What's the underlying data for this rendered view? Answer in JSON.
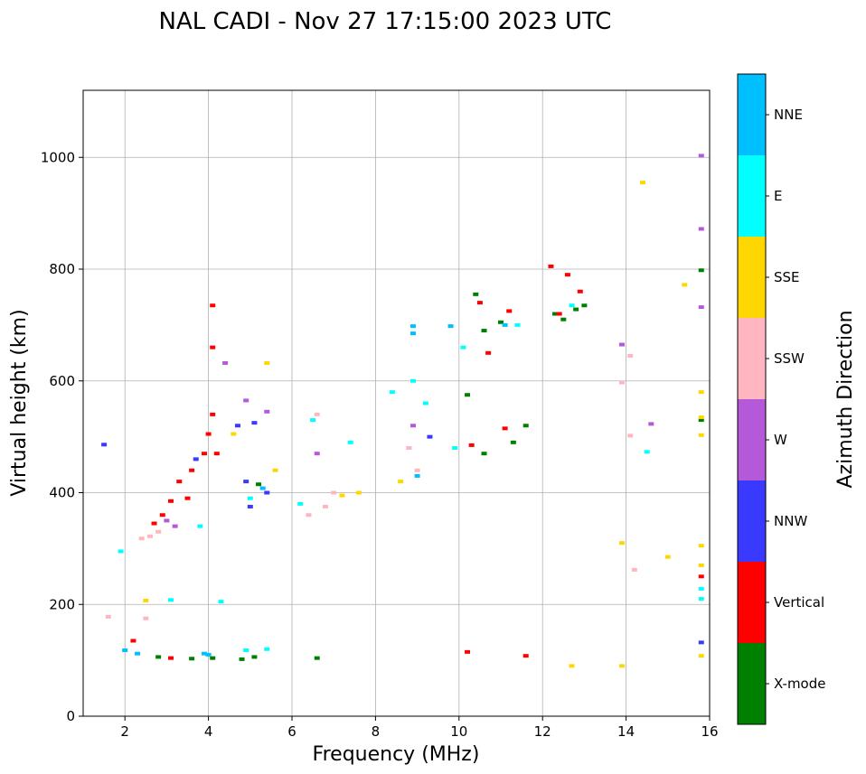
{
  "chart_data": {
    "type": "scatter",
    "title": "NAL CADI - Nov 27 17:15:00 2023 UTC",
    "xlabel": "Frequency (MHz)",
    "ylabel": "Virtual height (km)",
    "xlim": [
      1,
      16
    ],
    "ylim": [
      0,
      1120
    ],
    "xticks": [
      2,
      4,
      6,
      8,
      10,
      12,
      14,
      16
    ],
    "yticks": [
      0,
      200,
      400,
      600,
      800,
      1000
    ],
    "grid": true,
    "colorbar": {
      "label": "Azimuth Direction",
      "categories": [
        {
          "name": "X-mode",
          "color": "#008000"
        },
        {
          "name": "Vertical",
          "color": "#ff0000"
        },
        {
          "name": "NNW",
          "color": "#3a3aff"
        },
        {
          "name": "W",
          "color": "#b459d8"
        },
        {
          "name": "SSW",
          "color": "#ffb6c1"
        },
        {
          "name": "SSE",
          "color": "#ffd700"
        },
        {
          "name": "E",
          "color": "#00ffff"
        },
        {
          "name": "NNE",
          "color": "#00bfff"
        }
      ]
    },
    "series": [
      {
        "name": "X-mode",
        "points": [
          [
            4.1,
            104
          ],
          [
            4.8,
            102
          ],
          [
            5.1,
            106
          ],
          [
            6.6,
            104
          ],
          [
            10.4,
            755
          ],
          [
            10.6,
            690
          ],
          [
            11.0,
            705
          ],
          [
            12.3,
            720
          ],
          [
            12.5,
            710
          ],
          [
            12.8,
            728
          ],
          [
            13.0,
            735
          ],
          [
            11.3,
            490
          ],
          [
            10.6,
            470
          ],
          [
            11.6,
            520
          ],
          [
            10.2,
            575
          ],
          [
            5.2,
            415
          ],
          [
            2.8,
            106
          ],
          [
            3.6,
            103
          ],
          [
            15.8,
            798
          ],
          [
            15.8,
            530
          ]
        ]
      },
      {
        "name": "Vertical",
        "points": [
          [
            4.1,
            735
          ],
          [
            4.1,
            660
          ],
          [
            4.1,
            540
          ],
          [
            4.0,
            505
          ],
          [
            3.9,
            470
          ],
          [
            3.6,
            440
          ],
          [
            3.3,
            420
          ],
          [
            3.1,
            385
          ],
          [
            2.9,
            360
          ],
          [
            2.7,
            345
          ],
          [
            3.5,
            390
          ],
          [
            4.2,
            470
          ],
          [
            10.5,
            740
          ],
          [
            10.7,
            650
          ],
          [
            11.2,
            725
          ],
          [
            12.2,
            805
          ],
          [
            12.6,
            790
          ],
          [
            12.9,
            760
          ],
          [
            12.4,
            720
          ],
          [
            10.2,
            115
          ],
          [
            11.6,
            108
          ],
          [
            15.8,
            250
          ],
          [
            11.1,
            515
          ],
          [
            10.3,
            485
          ],
          [
            2.2,
            135
          ],
          [
            3.1,
            104
          ]
        ]
      },
      {
        "name": "NNW",
        "points": [
          [
            1.5,
            486
          ],
          [
            5.1,
            525
          ],
          [
            4.7,
            520
          ],
          [
            5.4,
            400
          ],
          [
            4.9,
            420
          ],
          [
            15.8,
            132
          ],
          [
            9.3,
            500
          ],
          [
            3.7,
            460
          ],
          [
            5.0,
            375
          ]
        ]
      },
      {
        "name": "W",
        "points": [
          [
            3.0,
            350
          ],
          [
            3.2,
            340
          ],
          [
            4.9,
            565
          ],
          [
            5.4,
            545
          ],
          [
            6.6,
            470
          ],
          [
            13.9,
            665
          ],
          [
            15.8,
            1003
          ],
          [
            15.8,
            872
          ],
          [
            15.8,
            732
          ],
          [
            14.6,
            523
          ],
          [
            8.9,
            520
          ],
          [
            4.4,
            632
          ]
        ]
      },
      {
        "name": "SSW",
        "points": [
          [
            2.4,
            318
          ],
          [
            2.6,
            322
          ],
          [
            2.8,
            330
          ],
          [
            6.4,
            360
          ],
          [
            6.8,
            375
          ],
          [
            7.0,
            400
          ],
          [
            14.1,
            645
          ],
          [
            13.9,
            597
          ],
          [
            14.2,
            262
          ],
          [
            14.1,
            502
          ],
          [
            8.8,
            480
          ],
          [
            9.0,
            440
          ],
          [
            6.6,
            540
          ],
          [
            2.5,
            175
          ],
          [
            1.6,
            178
          ]
        ]
      },
      {
        "name": "SSE",
        "points": [
          [
            5.4,
            632
          ],
          [
            5.6,
            440
          ],
          [
            7.2,
            395
          ],
          [
            7.6,
            400
          ],
          [
            8.6,
            420
          ],
          [
            14.4,
            955
          ],
          [
            15.4,
            772
          ],
          [
            15.8,
            580
          ],
          [
            15.8,
            535
          ],
          [
            15.8,
            503
          ],
          [
            15.8,
            305
          ],
          [
            15.8,
            270
          ],
          [
            15.8,
            108
          ],
          [
            15.0,
            285
          ],
          [
            13.9,
            310
          ],
          [
            13.9,
            90
          ],
          [
            12.7,
            90
          ],
          [
            4.6,
            505
          ],
          [
            2.5,
            207
          ]
        ]
      },
      {
        "name": "E",
        "points": [
          [
            6.5,
            530
          ],
          [
            7.4,
            490
          ],
          [
            8.4,
            580
          ],
          [
            8.9,
            600
          ],
          [
            9.2,
            560
          ],
          [
            9.9,
            480
          ],
          [
            10.1,
            660
          ],
          [
            11.4,
            700
          ],
          [
            12.7,
            735
          ],
          [
            15.8,
            228
          ],
          [
            15.8,
            210
          ],
          [
            14.5,
            473
          ],
          [
            3.8,
            340
          ],
          [
            4.3,
            205
          ],
          [
            5.0,
            390
          ],
          [
            6.2,
            380
          ],
          [
            5.4,
            120
          ],
          [
            4.9,
            118
          ],
          [
            1.9,
            295
          ],
          [
            3.1,
            208
          ]
        ]
      },
      {
        "name": "NNE",
        "points": [
          [
            8.9,
            698
          ],
          [
            8.9,
            685
          ],
          [
            9.8,
            698
          ],
          [
            11.1,
            700
          ],
          [
            9.0,
            430
          ],
          [
            5.3,
            408
          ],
          [
            4.0,
            110
          ],
          [
            2.0,
            118
          ],
          [
            2.3,
            112
          ],
          [
            3.9,
            112
          ]
        ]
      }
    ]
  }
}
